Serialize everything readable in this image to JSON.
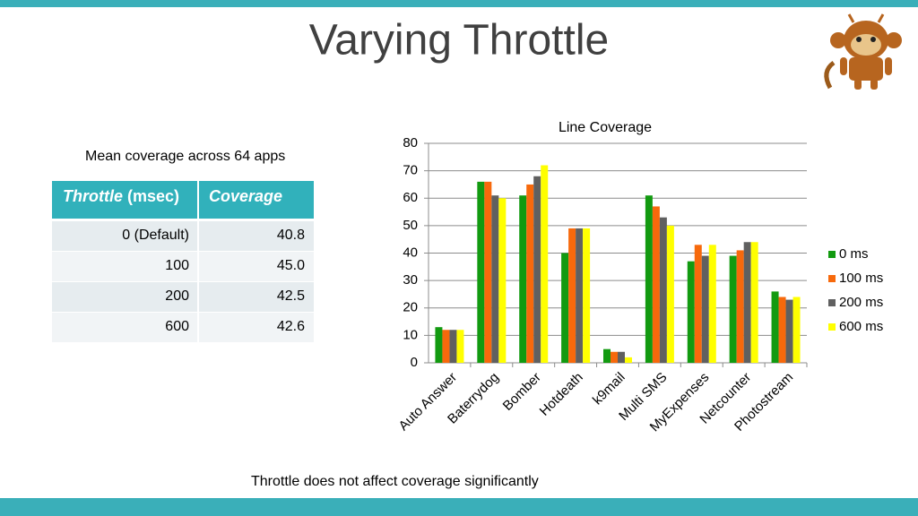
{
  "header": {
    "title": "Varying Throttle"
  },
  "table": {
    "caption": "Mean coverage across 64 apps",
    "header": [
      [
        "Throttle",
        "(msec)"
      ],
      "Coverage"
    ],
    "rows": [
      [
        "0 (Default)",
        "40.8"
      ],
      [
        "100",
        "45.0"
      ],
      [
        "200",
        "42.5"
      ],
      [
        "600",
        "42.6"
      ]
    ]
  },
  "chart_data": {
    "type": "bar",
    "title": "Line Coverage",
    "categories": [
      "Auto Answer",
      "Baterrydog",
      "Bomber",
      "Hotdeath",
      "k9mail",
      "Multi SMS",
      "MyExpenses",
      "Netcounter",
      "Photostream"
    ],
    "series": [
      {
        "name": "0 ms",
        "color": "#129a10",
        "values": [
          13,
          66,
          61,
          40,
          5,
          61,
          37,
          39,
          26
        ]
      },
      {
        "name": "100 ms",
        "color": "#f7690c",
        "values": [
          12,
          66,
          65,
          49,
          4,
          57,
          43,
          41,
          24
        ]
      },
      {
        "name": "200 ms",
        "color": "#606060",
        "values": [
          12,
          61,
          68,
          49,
          4,
          53,
          39,
          44,
          23
        ]
      },
      {
        "name": "600 ms",
        "color": "#ffff00",
        "values": [
          12,
          60,
          72,
          49,
          2,
          50,
          43,
          44,
          24
        ]
      }
    ],
    "ylim": [
      0,
      80
    ],
    "yticks": [
      0,
      10,
      20,
      30,
      40,
      50,
      60,
      70,
      80
    ],
    "grid": true,
    "legend": "right"
  },
  "footer": {
    "note": "Throttle does not affect coverage significantly"
  }
}
